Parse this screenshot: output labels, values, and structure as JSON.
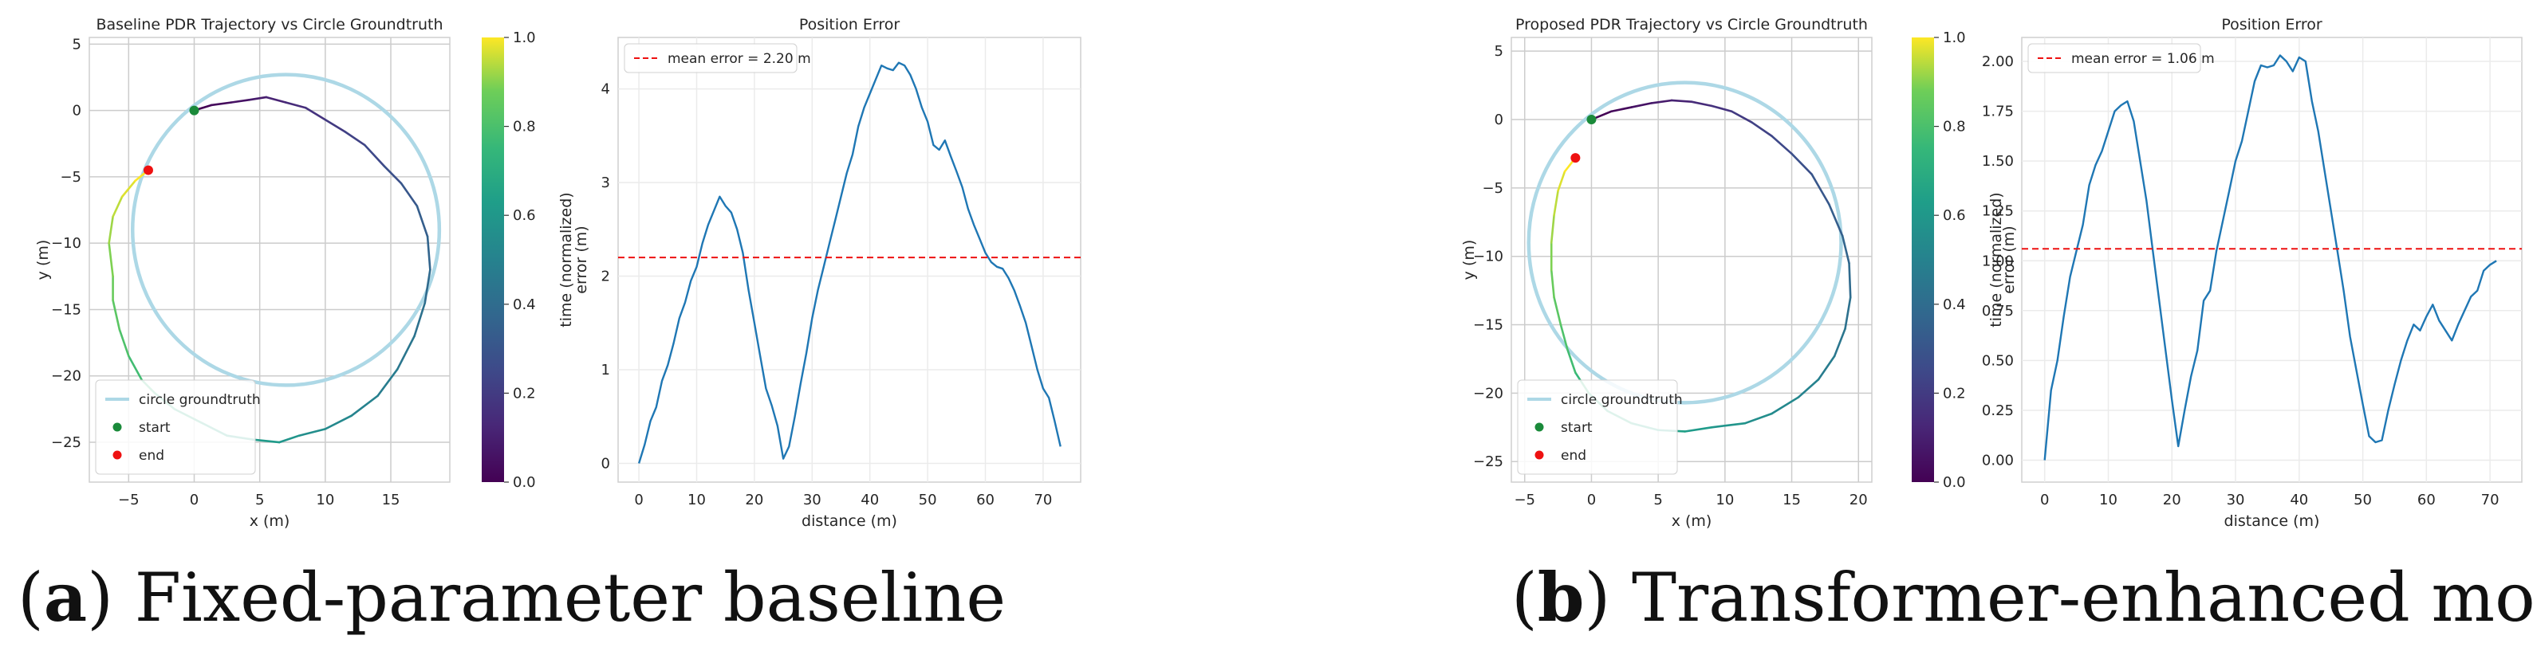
{
  "captions": [
    {
      "letter": "a",
      "text": "Fixed-parameter baseline"
    },
    {
      "letter": "b",
      "text": "Transformer-enhanced model"
    }
  ],
  "colorbar": {
    "label": "time (normalized)",
    "ticks": [
      "0.0",
      "0.2",
      "0.4",
      "0.6",
      "0.8",
      "1.0"
    ],
    "colormap": "viridis"
  },
  "colors": {
    "circle": "#add8e6",
    "start": "#1a8a3a",
    "end": "#ee1111",
    "error_line": "#1f77b4",
    "mean_line": "#ee1111",
    "grid": "#cccccc"
  },
  "chart_data": [
    {
      "type": "line",
      "title": "Baseline PDR Trajectory vs Circle Groundtruth",
      "xlabel": "x (m)",
      "ylabel": "y (m)",
      "xlim": [
        -8,
        19.5
      ],
      "ylim": [
        -28,
        5.5
      ],
      "xticks": [
        -5,
        0,
        5,
        10,
        15
      ],
      "yticks": [
        5,
        0,
        -5,
        -10,
        -15,
        -20,
        -25
      ],
      "grid": true,
      "legend_position": "lower-left",
      "legend": [
        "circle groundtruth",
        "start",
        "end"
      ],
      "groundtruth_circle": {
        "center": [
          7,
          -9
        ],
        "radius": 11.7
      },
      "trajectory": [
        [
          0,
          0
        ],
        [
          1.3,
          0.4
        ],
        [
          2.8,
          0.6
        ],
        [
          4.2,
          0.8
        ],
        [
          5.5,
          1.0
        ],
        [
          7,
          0.6
        ],
        [
          8.5,
          0.2
        ],
        [
          10,
          -0.7
        ],
        [
          11.5,
          -1.6
        ],
        [
          13,
          -2.6
        ],
        [
          14.5,
          -4.2
        ],
        [
          15.8,
          -5.5
        ],
        [
          17,
          -7.2
        ],
        [
          17.8,
          -9.5
        ],
        [
          18,
          -12
        ],
        [
          17.6,
          -14.5
        ],
        [
          16.8,
          -17
        ],
        [
          15.5,
          -19.5
        ],
        [
          14,
          -21.5
        ],
        [
          12,
          -23
        ],
        [
          10,
          -24
        ],
        [
          8,
          -24.5
        ],
        [
          6.5,
          -25
        ],
        [
          4.5,
          -24.8
        ],
        [
          2.5,
          -24.5
        ],
        [
          0.5,
          -23.5
        ],
        [
          -1.5,
          -22.5
        ],
        [
          -3,
          -21.3
        ],
        [
          -4,
          -20.3
        ],
        [
          -5,
          -18.5
        ],
        [
          -5.7,
          -16.5
        ],
        [
          -6.2,
          -14.3
        ],
        [
          -6.2,
          -12.5
        ],
        [
          -6.5,
          -10
        ],
        [
          -6.2,
          -8
        ],
        [
          -5.5,
          -6.5
        ],
        [
          -4.5,
          -5.3
        ],
        [
          -3.5,
          -4.5
        ]
      ],
      "start": [
        0,
        0
      ],
      "end": [
        -3.5,
        -4.5
      ]
    },
    {
      "type": "line",
      "title": "Position Error",
      "xlabel": "distance (m)",
      "ylabel": "error (m)",
      "xlim": [
        -3.6,
        76.5
      ],
      "ylim": [
        -0.2,
        4.55
      ],
      "xticks": [
        0,
        10,
        20,
        30,
        40,
        50,
        60,
        70
      ],
      "yticks": [
        0,
        1,
        2,
        3,
        4
      ],
      "grid": true,
      "legend_position": "top-left",
      "mean_error": 2.2,
      "mean_label": "mean error = 2.20 m",
      "x": [
        0,
        1,
        2,
        3,
        4,
        5,
        6,
        7,
        8,
        9,
        10,
        11,
        12,
        13,
        14,
        15,
        16,
        17,
        18,
        19,
        20,
        21,
        22,
        23,
        24,
        25,
        26,
        27,
        28,
        29,
        30,
        31,
        32,
        33,
        34,
        35,
        36,
        37,
        38,
        39,
        40,
        41,
        42,
        43,
        44,
        45,
        46,
        47,
        48,
        49,
        50,
        51,
        52,
        53,
        54,
        55,
        56,
        57,
        58,
        59,
        60,
        61,
        62,
        63,
        64,
        65,
        66,
        67,
        68,
        69,
        70,
        71,
        72,
        73
      ],
      "y": [
        0,
        0.2,
        0.45,
        0.6,
        0.88,
        1.05,
        1.28,
        1.55,
        1.72,
        1.95,
        2.1,
        2.35,
        2.55,
        2.7,
        2.85,
        2.75,
        2.68,
        2.5,
        2.25,
        1.85,
        1.5,
        1.15,
        0.8,
        0.62,
        0.4,
        0.05,
        0.18,
        0.5,
        0.85,
        1.18,
        1.55,
        1.85,
        2.1,
        2.35,
        2.6,
        2.85,
        3.1,
        3.3,
        3.6,
        3.8,
        3.95,
        4.1,
        4.25,
        4.22,
        4.2,
        4.28,
        4.25,
        4.15,
        4.0,
        3.8,
        3.65,
        3.4,
        3.35,
        3.45,
        3.28,
        3.12,
        2.95,
        2.72,
        2.55,
        2.4,
        2.25,
        2.15,
        2.1,
        2.08,
        1.98,
        1.85,
        1.68,
        1.5,
        1.25,
        1.0,
        0.8,
        0.7,
        0.45,
        0.18
      ]
    },
    {
      "type": "line",
      "title": "Proposed PDR Trajectory vs Circle Groundtruth",
      "xlabel": "x (m)",
      "ylabel": "y (m)",
      "xlim": [
        -6,
        21
      ],
      "ylim": [
        -26.5,
        6
      ],
      "xticks": [
        -5,
        0,
        5,
        10,
        15,
        20
      ],
      "yticks": [
        5,
        0,
        -5,
        -10,
        -15,
        -20,
        -25
      ],
      "grid": true,
      "legend_position": "lower-left",
      "legend": [
        "circle groundtruth",
        "start",
        "end"
      ],
      "groundtruth_circle": {
        "center": [
          7,
          -9
        ],
        "radius": 11.7
      },
      "trajectory": [
        [
          0,
          0
        ],
        [
          1.5,
          0.6
        ],
        [
          3,
          0.9
        ],
        [
          4.5,
          1.2
        ],
        [
          6,
          1.4
        ],
        [
          7.5,
          1.3
        ],
        [
          9,
          1.0
        ],
        [
          10.5,
          0.6
        ],
        [
          12,
          -0.2
        ],
        [
          13.5,
          -1.2
        ],
        [
          15,
          -2.5
        ],
        [
          16.5,
          -4
        ],
        [
          17.8,
          -6.2
        ],
        [
          18.8,
          -8.5
        ],
        [
          19.3,
          -10.5
        ],
        [
          19.4,
          -13
        ],
        [
          19,
          -15.3
        ],
        [
          18.2,
          -17.3
        ],
        [
          17,
          -19
        ],
        [
          15.5,
          -20.3
        ],
        [
          13.5,
          -21.5
        ],
        [
          11.5,
          -22.2
        ],
        [
          9,
          -22.5
        ],
        [
          7,
          -22.8
        ],
        [
          5,
          -22.7
        ],
        [
          3,
          -22.2
        ],
        [
          1.2,
          -21.3
        ],
        [
          -0.2,
          -20
        ],
        [
          -1.2,
          -18.5
        ],
        [
          -1.8,
          -16.8
        ],
        [
          -2.3,
          -15
        ],
        [
          -2.8,
          -13
        ],
        [
          -3,
          -11
        ],
        [
          -3,
          -9
        ],
        [
          -2.8,
          -7
        ],
        [
          -2.5,
          -5.2
        ],
        [
          -2,
          -3.8
        ],
        [
          -1.2,
          -2.8
        ]
      ],
      "start": [
        0,
        0
      ],
      "end": [
        -1.2,
        -2.8
      ]
    },
    {
      "type": "line",
      "title": "Position Error",
      "xlabel": "distance (m)",
      "ylabel": "error (m)",
      "xlim": [
        -3.6,
        75
      ],
      "ylim": [
        -0.11,
        2.12
      ],
      "xticks": [
        0,
        10,
        20,
        30,
        40,
        50,
        60,
        70
      ],
      "yticks": [
        0.0,
        0.25,
        0.5,
        0.75,
        1.0,
        1.25,
        1.5,
        1.75,
        2.0
      ],
      "ytick_labels": [
        "0.00",
        "0.25",
        "0.50",
        "0.75",
        "1.00",
        "1.25",
        "1.50",
        "1.75",
        "2.00"
      ],
      "grid": true,
      "legend_position": "top-left",
      "mean_error": 1.06,
      "mean_label": "mean error = 1.06 m",
      "x": [
        0,
        1,
        2,
        3,
        4,
        5,
        6,
        7,
        8,
        9,
        10,
        11,
        12,
        13,
        14,
        15,
        16,
        17,
        18,
        19,
        20,
        21,
        22,
        23,
        24,
        25,
        26,
        27,
        28,
        29,
        30,
        31,
        32,
        33,
        34,
        35,
        36,
        37,
        38,
        39,
        40,
        41,
        42,
        43,
        44,
        45,
        46,
        47,
        48,
        49,
        50,
        51,
        52,
        53,
        54,
        55,
        56,
        57,
        58,
        59,
        60,
        61,
        62,
        63,
        64,
        65,
        66,
        67,
        68,
        69,
        70,
        71
      ],
      "y": [
        0,
        0.35,
        0.5,
        0.72,
        0.92,
        1.05,
        1.18,
        1.38,
        1.48,
        1.55,
        1.65,
        1.75,
        1.78,
        1.8,
        1.7,
        1.5,
        1.3,
        1.05,
        0.8,
        0.55,
        0.3,
        0.07,
        0.25,
        0.42,
        0.55,
        0.8,
        0.85,
        1.05,
        1.2,
        1.35,
        1.5,
        1.6,
        1.75,
        1.9,
        1.98,
        1.97,
        1.98,
        2.03,
        2.0,
        1.95,
        2.02,
        2.0,
        1.8,
        1.65,
        1.45,
        1.25,
        1.05,
        0.85,
        0.62,
        0.45,
        0.28,
        0.12,
        0.09,
        0.1,
        0.25,
        0.38,
        0.5,
        0.6,
        0.68,
        0.65,
        0.72,
        0.78,
        0.7,
        0.65,
        0.6,
        0.68,
        0.75,
        0.82,
        0.85,
        0.95,
        0.98,
        1.0
      ]
    }
  ]
}
